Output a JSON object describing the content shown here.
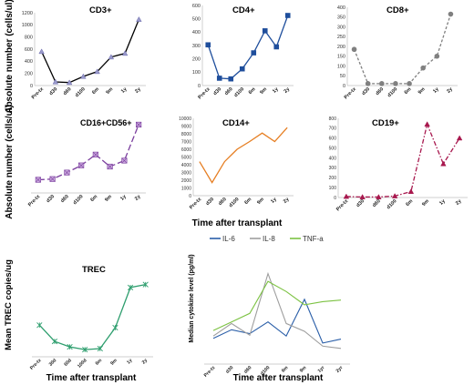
{
  "figure": {
    "ylabel_top": "Absolute number (cells/ul)",
    "ylabel_mid": "Absolute number (cells/ul)",
    "xlabel_mid": "Time after transplant",
    "bottom_left_ylabel": "Mean TREC copies/ug",
    "bottom_left_xlabel": "Time after transplant",
    "bottom_right_ylabel": "Median cytokine level (pg/ml)",
    "bottom_right_xlabel": "Time after transplant"
  },
  "chart_data": [
    {
      "id": "cd3",
      "type": "line",
      "title": "CD3+",
      "categories": [
        "Pre-tx",
        "d30",
        "d60",
        "d100",
        "6m",
        "9m",
        "1y",
        "2y"
      ],
      "ylim": [
        0,
        1200
      ],
      "yticks": [
        0,
        200,
        400,
        600,
        800,
        1000,
        1200
      ],
      "series": [
        {
          "values": [
            560,
            60,
            50,
            150,
            230,
            470,
            530,
            1090
          ],
          "color": "#000000",
          "marker": "triangle",
          "dash": "solid"
        }
      ]
    },
    {
      "id": "cd4",
      "type": "line",
      "title": "CD4+",
      "categories": [
        "Pre-tx",
        "d30",
        "d60",
        "d100",
        "6m",
        "9m",
        "1y",
        "2y"
      ],
      "ylim": [
        0,
        600
      ],
      "yticks": [
        0,
        100,
        200,
        300,
        400,
        500,
        600
      ],
      "series": [
        {
          "values": [
            305,
            55,
            50,
            125,
            245,
            410,
            290,
            525
          ],
          "color": "#1f4e9c",
          "marker": "square",
          "dash": "solid"
        }
      ]
    },
    {
      "id": "cd8",
      "type": "line",
      "title": "CD8+",
      "categories": [
        "Pre-tx",
        "d30",
        "d60",
        "d100",
        "6m",
        "9m",
        "1y",
        "2y"
      ],
      "ylim": [
        0,
        400
      ],
      "yticks": [
        0,
        50,
        100,
        150,
        200,
        250,
        300,
        350,
        400
      ],
      "series": [
        {
          "values": [
            185,
            10,
            10,
            10,
            10,
            90,
            150,
            365
          ],
          "color": "#808080",
          "marker": "circle",
          "dash": "dash"
        }
      ]
    },
    {
      "id": "cd16",
      "type": "line",
      "title": "CD16+CD56+",
      "categories": [
        "Pre-tx",
        "d30",
        "d60",
        "d100",
        "6m",
        "9m",
        "1y",
        "2y"
      ],
      "ylim": [
        0,
        300
      ],
      "yticks": [],
      "series": [
        {
          "values": [
            55,
            58,
            85,
            115,
            160,
            110,
            135,
            285
          ],
          "color": "#7b3f9e",
          "marker": "boxx",
          "dash": "longdash"
        }
      ]
    },
    {
      "id": "cd14",
      "type": "line",
      "title": "CD14+",
      "categories": [
        "Pre-tx",
        "d30",
        "d60",
        "d100",
        "6m",
        "9m",
        "1y",
        "2y"
      ],
      "ylim": [
        0,
        10000
      ],
      "yticks": [
        0,
        1000,
        2000,
        3000,
        4000,
        5000,
        6000,
        7000,
        8000,
        9000,
        10000
      ],
      "series": [
        {
          "values": [
            4400,
            1700,
            4400,
            6000,
            7000,
            8100,
            7000,
            8800
          ],
          "color": "#e67e22",
          "marker": "none",
          "dash": "solid"
        }
      ]
    },
    {
      "id": "cd19",
      "type": "line",
      "title": "CD19+",
      "categories": [
        "Pre-tx",
        "d30",
        "d60",
        "d100",
        "6m",
        "9m",
        "1y",
        "2y"
      ],
      "ylim": [
        0,
        800
      ],
      "yticks": [
        0,
        100,
        200,
        300,
        400,
        500,
        600,
        700,
        800
      ],
      "series": [
        {
          "values": [
            10,
            5,
            5,
            15,
            60,
            740,
            340,
            600
          ],
          "color": "#a8184e",
          "marker": "triangle",
          "dash": "dashdot"
        }
      ]
    },
    {
      "id": "trec",
      "type": "line",
      "title": "TREC",
      "categories": [
        "Pre-tx",
        "30d",
        "60d",
        "100d",
        "6m",
        "9m",
        "1y",
        "2y"
      ],
      "ylim": [
        0,
        5000
      ],
      "yticks": [],
      "series": [
        {
          "values": [
            1850,
            900,
            580,
            420,
            480,
            1700,
            4050,
            4220
          ],
          "color": "#2e9e6e",
          "marker": "star",
          "dash": "solid"
        }
      ]
    },
    {
      "id": "cytokine",
      "type": "line",
      "title": "",
      "categories": [
        "Pre-tx",
        "d30",
        "d60",
        "d100",
        "6m",
        "9m",
        "1yr",
        "2yr"
      ],
      "ylim": [
        0,
        14
      ],
      "yticks": [],
      "legend": "top",
      "series": [
        {
          "name": "IL-6",
          "values": [
            3.3,
            4.4,
            3.9,
            5.4,
            3.6,
            8.3,
            2.7,
            3.2
          ],
          "color": "#2a5ea8",
          "marker": "none",
          "dash": "solid"
        },
        {
          "name": "IL-8",
          "values": [
            3.6,
            5.2,
            3.7,
            11.6,
            5.2,
            4.2,
            2.3,
            2.0
          ],
          "color": "#9e9e9e",
          "marker": "none",
          "dash": "solid"
        },
        {
          "name": "TNF-a",
          "values": [
            4.3,
            5.4,
            6.5,
            10.6,
            9.3,
            7.6,
            8.0,
            8.2
          ],
          "color": "#7cc242",
          "marker": "none",
          "dash": "solid"
        }
      ]
    }
  ]
}
